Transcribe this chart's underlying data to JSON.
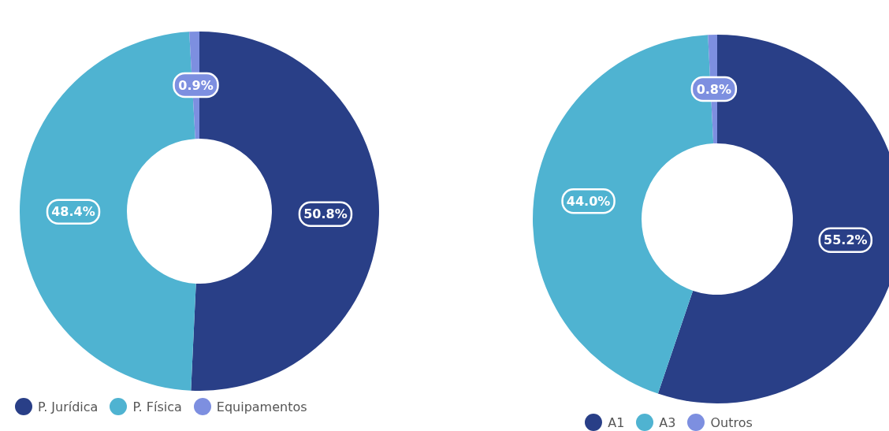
{
  "chart_data": [
    {
      "type": "donut",
      "categories": [
        "P. Jurídica",
        "P. Física",
        "Equipamentos"
      ],
      "values": [
        50.8,
        48.4,
        0.9
      ],
      "colors": [
        "#293f87",
        "#4fb3d1",
        "#7d8fe0"
      ],
      "value_labels": [
        "50.8%",
        "48.4%",
        "0.9%"
      ],
      "legend": "bottom left"
    },
    {
      "type": "donut",
      "categories": [
        "A1",
        "A3",
        "Outros"
      ],
      "values": [
        55.2,
        44.0,
        0.8
      ],
      "colors": [
        "#293f87",
        "#4fb3d1",
        "#7d8fe0"
      ],
      "value_labels": [
        "55.2%",
        "44.0%",
        "0.8%"
      ],
      "legend": "bottom"
    }
  ]
}
